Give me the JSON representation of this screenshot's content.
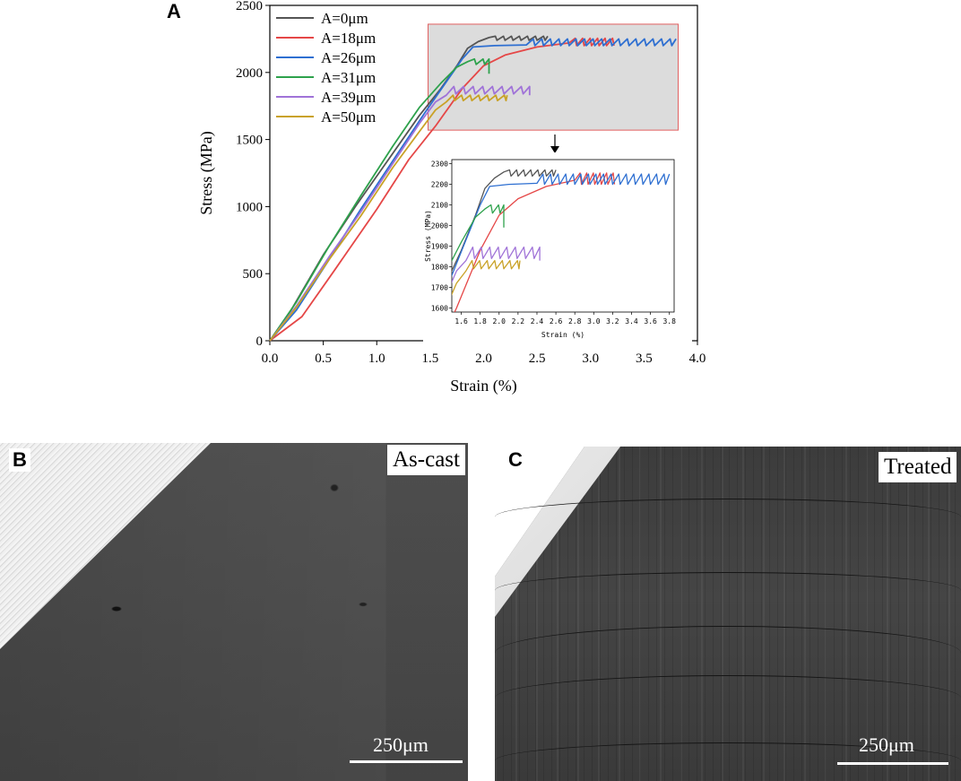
{
  "panels": {
    "a": "A",
    "b": "B",
    "c": "C"
  },
  "chart_data": [
    {
      "type": "line",
      "xlabel": "Strain (%)",
      "ylabel": "Stress (MPa)",
      "xlim": [
        0,
        4.0
      ],
      "ylim": [
        0,
        2500
      ],
      "x_ticks": [
        "0.0",
        "0.5",
        "1.0",
        "1.5",
        "2.0",
        "2.5",
        "3.0",
        "3.5",
        "4.0"
      ],
      "y_ticks": [
        "0",
        "500",
        "1000",
        "1500",
        "2000",
        "2500"
      ],
      "legend": "top-left",
      "zoom_box": {
        "x": [
          1.48,
          3.82
        ],
        "y": [
          1570,
          2360
        ]
      },
      "series": [
        {
          "name": "A=0μm",
          "color": "#555555",
          "points": [
            [
              0,
              0
            ],
            [
              0.2,
              230
            ],
            [
              0.5,
              640
            ],
            [
              0.8,
              1000
            ],
            [
              1.1,
              1340
            ],
            [
              1.4,
              1680
            ],
            [
              1.6,
              1880
            ],
            [
              1.75,
              2050
            ],
            [
              1.85,
              2180
            ],
            [
              1.95,
              2230
            ],
            [
              2.05,
              2260
            ]
          ],
          "saw": [
            2.05,
            2.6,
            2240,
            2270,
            0.075
          ]
        },
        {
          "name": "A=18μm",
          "color": "#e54747",
          "points": [
            [
              0,
              0
            ],
            [
              0.3,
              180
            ],
            [
              0.6,
              520
            ],
            [
              1.0,
              980
            ],
            [
              1.3,
              1350
            ],
            [
              1.55,
              1600
            ],
            [
              1.8,
              1880
            ],
            [
              2.0,
              2050
            ],
            [
              2.2,
              2130
            ],
            [
              2.5,
              2190
            ],
            [
              2.8,
              2220
            ]
          ],
          "saw": [
            2.8,
            3.22,
            2200,
            2255,
            0.07
          ]
        },
        {
          "name": "A=26μm",
          "color": "#2e6fd1",
          "points": [
            [
              0,
              0
            ],
            [
              0.25,
              230
            ],
            [
              0.55,
              600
            ],
            [
              0.85,
              980
            ],
            [
              1.15,
              1340
            ],
            [
              1.45,
              1700
            ],
            [
              1.65,
              1930
            ],
            [
              1.8,
              2100
            ],
            [
              1.9,
              2190
            ],
            [
              2.1,
              2200
            ],
            [
              2.4,
              2205
            ]
          ],
          "saw": [
            2.4,
            3.8,
            2200,
            2250,
            0.08
          ]
        },
        {
          "name": "A=31μm",
          "color": "#2ea24c",
          "points": [
            [
              0,
              0
            ],
            [
              0.25,
              290
            ],
            [
              0.55,
              700
            ],
            [
              0.85,
              1080
            ],
            [
              1.15,
              1450
            ],
            [
              1.4,
              1740
            ],
            [
              1.6,
              1920
            ],
            [
              1.75,
              2040
            ],
            [
              1.85,
              2080
            ]
          ],
          "saw": [
            1.85,
            2.05,
            2060,
            2100,
            0.08
          ],
          "drop": [
            2.05,
            1990
          ]
        },
        {
          "name": "A=39μm",
          "color": "#a073d8",
          "points": [
            [
              0,
              0
            ],
            [
              0.25,
              260
            ],
            [
              0.55,
              620
            ],
            [
              0.85,
              960
            ],
            [
              1.15,
              1320
            ],
            [
              1.4,
              1620
            ],
            [
              1.55,
              1780
            ],
            [
              1.65,
              1830
            ]
          ],
          "saw": [
            1.65,
            2.43,
            1840,
            1895,
            0.09
          ],
          "drop": [
            2.43,
            1830
          ]
        },
        {
          "name": "A=50μm",
          "color": "#c9a227",
          "points": [
            [
              0,
              0
            ],
            [
              0.25,
              250
            ],
            [
              0.55,
              600
            ],
            [
              0.85,
              930
            ],
            [
              1.15,
              1290
            ],
            [
              1.4,
              1560
            ],
            [
              1.55,
              1720
            ],
            [
              1.65,
              1780
            ]
          ],
          "saw": [
            1.65,
            2.22,
            1790,
            1830,
            0.08
          ]
        }
      ]
    },
    {
      "type": "line",
      "xlabel": "Strain (%)",
      "ylabel": "Stress (MPa)",
      "xlim": [
        1.5,
        3.85
      ],
      "ylim": [
        1580,
        2320
      ],
      "x_ticks": [
        "1.6",
        "1.8",
        "2.0",
        "2.2",
        "2.4",
        "2.6",
        "2.8",
        "3.0",
        "3.2",
        "3.4",
        "3.6",
        "3.8"
      ],
      "y_ticks": [
        "1600",
        "1700",
        "1800",
        "1900",
        "2000",
        "2100",
        "2200",
        "2300"
      ],
      "inset_of": 0
    }
  ],
  "micrographs": {
    "b": {
      "label": "As-cast",
      "scale_bar": "250μm"
    },
    "c": {
      "label": "Treated",
      "scale_bar": "250μm"
    }
  }
}
